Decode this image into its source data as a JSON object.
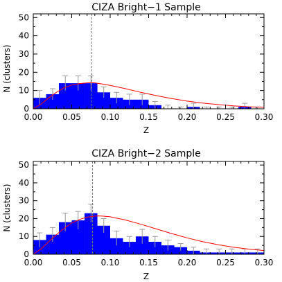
{
  "chart_data": [
    {
      "type": "bar",
      "title": "CIZA Bright−1 Sample",
      "xlabel": "Z",
      "ylabel": "N (clusters)",
      "xlim": [
        0.0,
        0.3
      ],
      "ylim": [
        0,
        52
      ],
      "xticks": [
        "0.00",
        "0.05",
        "0.10",
        "0.15",
        "0.20",
        "0.25",
        "0.30"
      ],
      "yticks": [
        "0",
        "10",
        "20",
        "30",
        "40",
        "50"
      ],
      "bin_width": 0.0167,
      "bins": [
        {
          "x0": 0.0,
          "value": 6,
          "err": 4
        },
        {
          "x0": 0.0167,
          "value": 8,
          "err": 3
        },
        {
          "x0": 0.0333,
          "value": 14,
          "err": 4
        },
        {
          "x0": 0.05,
          "value": 14,
          "err": 4
        },
        {
          "x0": 0.0667,
          "value": 14,
          "err": 4
        },
        {
          "x0": 0.0833,
          "value": 9,
          "err": 3
        },
        {
          "x0": 0.1,
          "value": 6,
          "err": 3
        },
        {
          "x0": 0.1167,
          "value": 5,
          "err": 3
        },
        {
          "x0": 0.1333,
          "value": 5,
          "err": 3
        },
        {
          "x0": 0.15,
          "value": 2,
          "err": 2
        },
        {
          "x0": 0.1667,
          "value": 0,
          "err": 2
        },
        {
          "x0": 0.1833,
          "value": 0,
          "err": 1
        },
        {
          "x0": 0.2,
          "value": 1,
          "err": 2
        },
        {
          "x0": 0.2167,
          "value": 0,
          "err": 1
        },
        {
          "x0": 0.2333,
          "value": 0,
          "err": 1
        },
        {
          "x0": 0.25,
          "value": 0,
          "err": 1
        },
        {
          "x0": 0.2667,
          "value": 1,
          "err": 2
        },
        {
          "x0": 0.2833,
          "value": 0,
          "err": 1
        }
      ],
      "model_curve": {
        "x": [
          0.0,
          0.01,
          0.02,
          0.03,
          0.04,
          0.05,
          0.06,
          0.07,
          0.075,
          0.08,
          0.09,
          0.1,
          0.12,
          0.14,
          0.16,
          0.18,
          0.2,
          0.22,
          0.24,
          0.26,
          0.28,
          0.3
        ],
        "y": [
          0,
          2.5,
          6,
          9,
          11.5,
          13,
          13.8,
          14.2,
          14.3,
          14.2,
          13.6,
          12.8,
          11,
          9,
          7.2,
          5.6,
          4.2,
          3.1,
          2.3,
          1.6,
          1.1,
          0.8
        ]
      },
      "median_line_x": 0.076,
      "color_bars": "#0000ff",
      "color_curve": "#ff0000"
    },
    {
      "type": "bar",
      "title": "CIZA Bright−2 Sample",
      "xlabel": "Z",
      "ylabel": "N (clusters)",
      "xlim": [
        0.0,
        0.3
      ],
      "ylim": [
        0,
        52
      ],
      "xticks": [
        "0.00",
        "0.05",
        "0.10",
        "0.15",
        "0.20",
        "0.25",
        "0.30"
      ],
      "yticks": [
        "0",
        "10",
        "20",
        "30",
        "40",
        "50"
      ],
      "bin_width": 0.0167,
      "bins": [
        {
          "x0": 0.0,
          "value": 8,
          "err": 4
        },
        {
          "x0": 0.0167,
          "value": 11,
          "err": 4
        },
        {
          "x0": 0.0333,
          "value": 18,
          "err": 5
        },
        {
          "x0": 0.05,
          "value": 19,
          "err": 5
        },
        {
          "x0": 0.0667,
          "value": 23,
          "err": 5
        },
        {
          "x0": 0.0833,
          "value": 16,
          "err": 4
        },
        {
          "x0": 0.1,
          "value": 9,
          "err": 4
        },
        {
          "x0": 0.1167,
          "value": 7,
          "err": 3
        },
        {
          "x0": 0.1333,
          "value": 10,
          "err": 4
        },
        {
          "x0": 0.15,
          "value": 7,
          "err": 3
        },
        {
          "x0": 0.1667,
          "value": 5,
          "err": 3
        },
        {
          "x0": 0.1833,
          "value": 4,
          "err": 2
        },
        {
          "x0": 0.2,
          "value": 2,
          "err": 2
        },
        {
          "x0": 0.2167,
          "value": 1,
          "err": 2
        },
        {
          "x0": 0.2333,
          "value": 1,
          "err": 2
        },
        {
          "x0": 0.25,
          "value": 1,
          "err": 2
        },
        {
          "x0": 0.2667,
          "value": 1,
          "err": 2
        },
        {
          "x0": 0.2833,
          "value": 1,
          "err": 2
        }
      ],
      "model_curve": {
        "x": [
          0.0,
          0.01,
          0.02,
          0.03,
          0.04,
          0.05,
          0.06,
          0.07,
          0.08,
          0.085,
          0.09,
          0.1,
          0.12,
          0.14,
          0.16,
          0.18,
          0.2,
          0.22,
          0.24,
          0.26,
          0.28,
          0.3
        ],
        "y": [
          0,
          3,
          7,
          11,
          14.5,
          17.5,
          19.5,
          20.8,
          21.4,
          21.5,
          21.4,
          21,
          19.2,
          16.8,
          14.2,
          11.6,
          9.2,
          7.1,
          5.4,
          4,
          2.9,
          2.1
        ]
      },
      "median_line_x": 0.077,
      "color_bars": "#0000ff",
      "color_curve": "#ff0000"
    }
  ]
}
